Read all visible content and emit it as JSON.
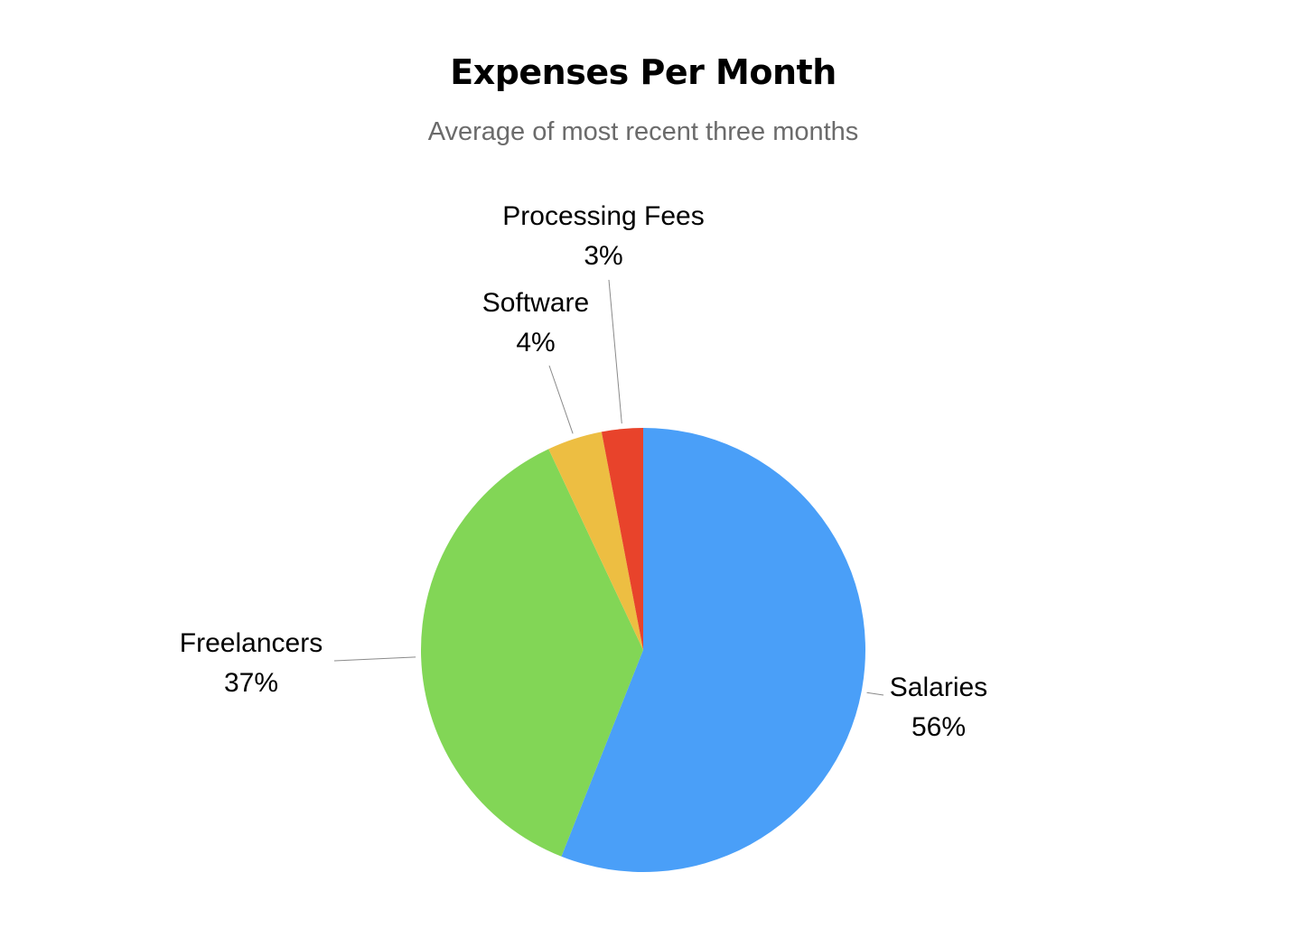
{
  "chart_data": {
    "type": "pie",
    "title": "Expenses Per Month",
    "subtitle": "Average of most recent three months",
    "slices": [
      {
        "label": "Salaries",
        "value": 56,
        "value_label": "56%",
        "color": "#4A9FF8"
      },
      {
        "label": "Freelancers",
        "value": 37,
        "value_label": "37%",
        "color": "#82D656"
      },
      {
        "label": "Software",
        "value": 4,
        "value_label": "4%",
        "color": "#EDBE42"
      },
      {
        "label": "Processing Fees",
        "value": 3,
        "value_label": "3%",
        "color": "#E8432B"
      }
    ],
    "start": "12 o'clock",
    "direction": "clockwise",
    "legend": "none"
  }
}
